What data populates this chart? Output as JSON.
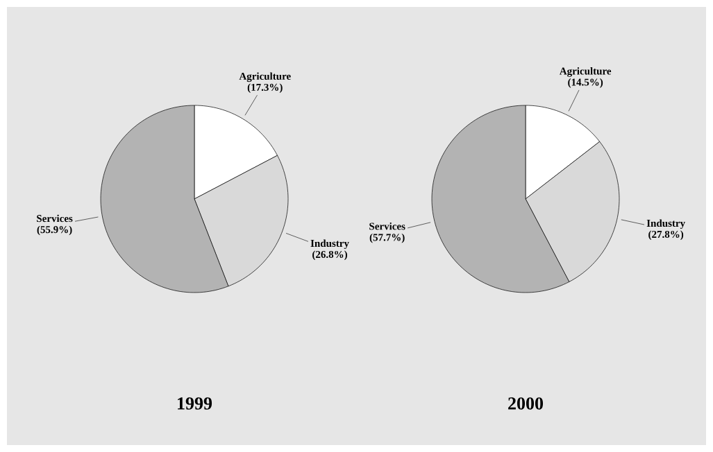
{
  "chart_data": [
    {
      "type": "pie",
      "title": "1999",
      "categories": [
        "Agriculture",
        "Industry",
        "Services"
      ],
      "values": [
        17.3,
        26.8,
        55.9
      ],
      "value_labels": [
        "(17.3%)",
        "(26.8%)",
        "(55.9%)"
      ],
      "colors": [
        "#ffffff",
        "#d9d9d9",
        "#b3b3b3"
      ]
    },
    {
      "type": "pie",
      "title": "2000",
      "categories": [
        "Agriculture",
        "Industry",
        "Services"
      ],
      "values": [
        14.5,
        27.8,
        57.7
      ],
      "value_labels": [
        "(14.5%)",
        "(27.8%)",
        "(57.7%)"
      ],
      "colors": [
        "#ffffff",
        "#d9d9d9",
        "#b3b3b3"
      ]
    }
  ]
}
